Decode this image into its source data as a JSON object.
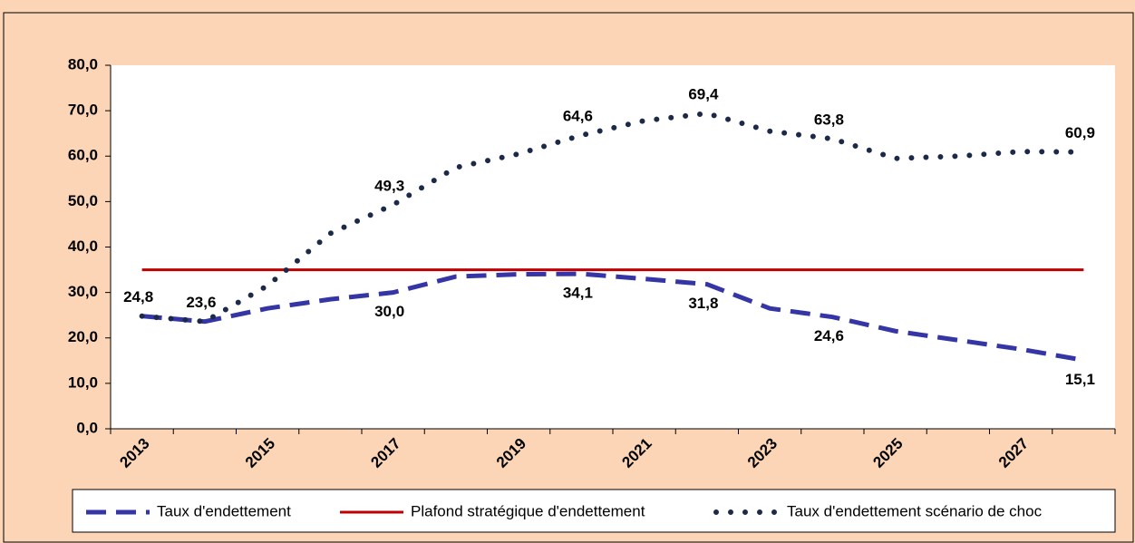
{
  "chart_data": {
    "type": "line",
    "categories": [
      "2013",
      null,
      "2015",
      null,
      "2017",
      null,
      "2019",
      null,
      "2021",
      null,
      "2023",
      null,
      "2025",
      null,
      "2027",
      null
    ],
    "series": [
      {
        "name": "Taux d'endettement",
        "color": "#3535a5",
        "style": "dashed",
        "values": [
          24.8,
          23.6,
          26.5,
          28.5,
          30.0,
          33.5,
          34.0,
          34.1,
          33.0,
          31.8,
          26.5,
          24.6,
          21.5,
          19.5,
          17.5,
          15.1
        ],
        "value_labels": [
          "24,8",
          "23,6",
          null,
          null,
          "30,0",
          null,
          null,
          "34,1",
          null,
          "31,8",
          null,
          "24,6",
          null,
          null,
          null,
          "15,1"
        ]
      },
      {
        "name": "Plafond stratégique d'endettement",
        "color": "#c00000",
        "style": "solid",
        "values": [
          35,
          35,
          35,
          35,
          35,
          35,
          35,
          35,
          35,
          35,
          35,
          35,
          35,
          35,
          35,
          35
        ]
      },
      {
        "name": "Taux d'endettement scénario de choc",
        "color": "#1c2a4a",
        "style": "dotted",
        "values": [
          24.8,
          23.6,
          31.5,
          43.0,
          49.3,
          57.5,
          60.5,
          64.6,
          67.8,
          69.4,
          65.5,
          63.8,
          59.5,
          60.0,
          61.0,
          60.9
        ],
        "value_labels": [
          null,
          null,
          null,
          null,
          "49,3",
          null,
          null,
          "64,6",
          null,
          "69,4",
          null,
          "63,8",
          null,
          null,
          null,
          "60,9"
        ]
      }
    ],
    "ylim": [
      0,
      80
    ],
    "yticks": [
      {
        "value": 0,
        "label": "0,0"
      },
      {
        "value": 10,
        "label": "10,0"
      },
      {
        "value": 20,
        "label": "20,0"
      },
      {
        "value": 30,
        "label": "30,0"
      },
      {
        "value": 40,
        "label": "40,0"
      },
      {
        "value": 50,
        "label": "50,0"
      },
      {
        "value": 60,
        "label": "60,0"
      },
      {
        "value": 70,
        "label": "70,0"
      },
      {
        "value": 80,
        "label": "80,0"
      }
    ],
    "grid": false,
    "legend": "bottom"
  }
}
